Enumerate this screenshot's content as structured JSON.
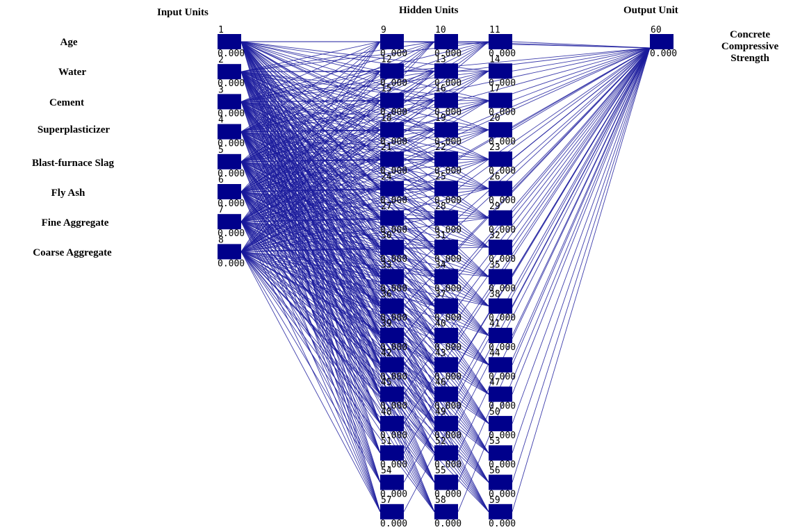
{
  "headers": {
    "input": "Input Units",
    "hidden": "Hidden Units",
    "output": "Output Unit"
  },
  "input_labels": [
    "Age",
    "Water",
    "Cement",
    "Superplasticizer",
    "Blast-furnace Slag",
    "Fly Ash",
    "Fine Aggregate",
    "Coarse Aggregate"
  ],
  "output_label": [
    "Concrete",
    "Compressive",
    "Strength"
  ],
  "network": {
    "input_ids": [
      "1",
      "2",
      "3",
      "4",
      "5",
      "6",
      "7",
      "8"
    ],
    "hidden_columns": [
      [
        "9",
        "12",
        "15",
        "18",
        "21",
        "24",
        "27",
        "30",
        "33",
        "36",
        "39",
        "42",
        "45",
        "48",
        "51",
        "54",
        "57"
      ],
      [
        "10",
        "13",
        "16",
        "19",
        "22",
        "25",
        "28",
        "31",
        "34",
        "37",
        "40",
        "43",
        "46",
        "49",
        "52",
        "55",
        "58"
      ],
      [
        "11",
        "14",
        "17",
        "20",
        "23",
        "26",
        "29",
        "32",
        "35",
        "38",
        "41",
        "44",
        "47",
        "50",
        "53",
        "56",
        "59"
      ]
    ],
    "output_id": "60",
    "unit_value": "0.000"
  },
  "colors": {
    "unit": "#00008b",
    "edge": "#1a1a9c"
  }
}
